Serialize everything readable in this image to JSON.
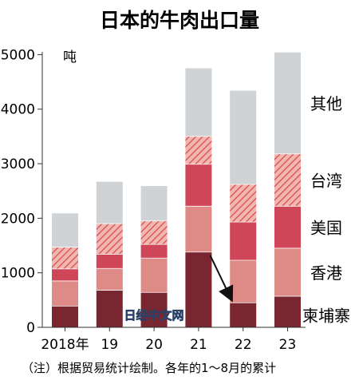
{
  "chart_data": {
    "type": "bar",
    "stacked": true,
    "title": "日本的牛肉出口量",
    "unit": "吨",
    "categories": [
      "2018年",
      "19",
      "20",
      "21",
      "22",
      "23"
    ],
    "series": [
      {
        "name": "柬埔寨",
        "values": [
          390,
          680,
          640,
          1380,
          450,
          570
        ],
        "color": "#7a2630",
        "pattern": "solid"
      },
      {
        "name": "香港",
        "values": [
          460,
          400,
          630,
          840,
          780,
          880
        ],
        "color": "#de8a86",
        "pattern": "solid"
      },
      {
        "name": "美国",
        "values": [
          220,
          260,
          250,
          770,
          700,
          770
        ],
        "color": "#cf4659",
        "pattern": "solid"
      },
      {
        "name": "台湾",
        "values": [
          400,
          560,
          430,
          510,
          690,
          960
        ],
        "color": "#f0a79e",
        "pattern": "hatch"
      },
      {
        "name": "其他",
        "values": [
          620,
          770,
          640,
          1250,
          1720,
          1860
        ],
        "color": "#d0d3d5",
        "pattern": "solid"
      }
    ],
    "yticks": [
      0,
      1000,
      2000,
      3000,
      4000,
      5000
    ],
    "ylim": [
      0,
      5050
    ],
    "grid": false,
    "legend": "right-side labels next to stacks",
    "annotation": "arrow from 2021 Cambodia bar down to 2022 Cambodia bar"
  },
  "watermark": "日经中文网",
  "note": "（注）根据贸易统计绘制。各年的1～8月的累计"
}
